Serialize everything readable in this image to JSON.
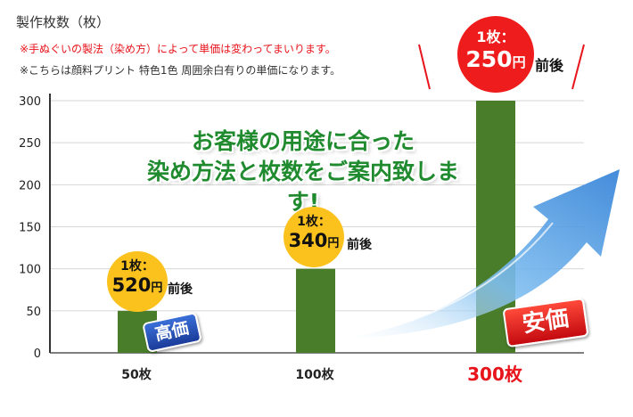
{
  "header": {
    "title": "製作枚数（枚）",
    "note_red": "※手ぬぐいの製法（染め方）によって単価は変わってまいります。",
    "note_gray": "※こちらは顔料プリント 特色1色 周囲余白有りの単価になります。"
  },
  "headline": {
    "line1": "お客様の用途に合った",
    "line2": "染め方法と枚数をご案内致します!"
  },
  "bubbles": [
    {
      "qty": "1枚：",
      "price": "520",
      "yen": "円",
      "suffix": "前後"
    },
    {
      "qty": "1枚：",
      "price": "340",
      "yen": "円",
      "suffix": "前後"
    },
    {
      "qty": "1枚：",
      "price": "250",
      "yen": "円",
      "suffix": "前後"
    }
  ],
  "badges": {
    "high": "高価",
    "low": "安価"
  },
  "colors": {
    "bar": "#4a7d2a",
    "accent_red": "#e8141b",
    "headline_green": "#1f8a2e",
    "bubble_yellow": "#fbc21e",
    "arrow_blue": "#4d9de0"
  },
  "chart_data": {
    "type": "bar",
    "categories": [
      "50枚",
      "100枚",
      "300枚"
    ],
    "values": [
      50,
      100,
      300
    ],
    "yticks": [
      "0",
      "50",
      "100",
      "150",
      "200",
      "250",
      "300"
    ],
    "ylim": [
      0,
      300
    ],
    "ylabel": "製作枚数（枚）",
    "grid": true
  }
}
